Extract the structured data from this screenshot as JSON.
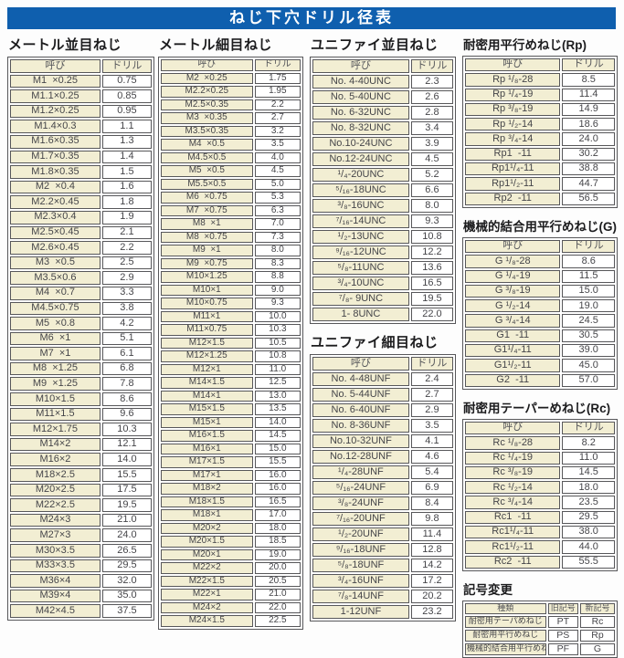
{
  "title": "ねじ下穴ドリル径表",
  "col_headers": {
    "name": "呼び",
    "drill": "ドリル"
  },
  "tables": {
    "metric_coarse": {
      "title": "メートル並目ねじ",
      "rows": [
        [
          "M1  ×0.25",
          "0.75"
        ],
        [
          "M1.1×0.25",
          "0.85"
        ],
        [
          "M1.2×0.25",
          "0.95"
        ],
        [
          "M1.4×0.3",
          "1.1"
        ],
        [
          "M1.6×0.35",
          "1.3"
        ],
        [
          "M1.7×0.35",
          "1.4"
        ],
        [
          "M1.8×0.35",
          "1.5"
        ],
        [
          "M2  ×0.4",
          "1.6"
        ],
        [
          "M2.2×0.45",
          "1.8"
        ],
        [
          "M2.3×0.4",
          "1.9"
        ],
        [
          "M2.5×0.45",
          "2.1"
        ],
        [
          "M2.6×0.45",
          "2.2"
        ],
        [
          "M3  ×0.5",
          "2.5"
        ],
        [
          "M3.5×0.6",
          "2.9"
        ],
        [
          "M4  ×0.7",
          "3.3"
        ],
        [
          "M4.5×0.75",
          "3.8"
        ],
        [
          "M5  ×0.8",
          "4.2"
        ],
        [
          "M6  ×1",
          "5.1"
        ],
        [
          "M7  ×1",
          "6.1"
        ],
        [
          "M8  ×1.25",
          "6.8"
        ],
        [
          "M9  ×1.25",
          "7.8"
        ],
        [
          "M10×1.5",
          "8.6"
        ],
        [
          "M11×1.5",
          "9.6"
        ],
        [
          "M12×1.75",
          "10.3"
        ],
        [
          "M14×2",
          "12.1"
        ],
        [
          "M16×2",
          "14.0"
        ],
        [
          "M18×2.5",
          "15.5"
        ],
        [
          "M20×2.5",
          "17.5"
        ],
        [
          "M22×2.5",
          "19.5"
        ],
        [
          "M24×3",
          "21.0"
        ],
        [
          "M27×3",
          "24.0"
        ],
        [
          "M30×3.5",
          "26.5"
        ],
        [
          "M33×3.5",
          "29.5"
        ],
        [
          "M36×4",
          "32.0"
        ],
        [
          "M39×4",
          "35.0"
        ],
        [
          "M42×4.5",
          "37.5"
        ]
      ]
    },
    "metric_fine": {
      "title": "メートル細目ねじ",
      "rows": [
        [
          "M2  ×0.25",
          "1.75"
        ],
        [
          "M2.2×0.25",
          "1.95"
        ],
        [
          "M2.5×0.35",
          "2.2"
        ],
        [
          "M3  ×0.35",
          "2.7"
        ],
        [
          "M3.5×0.35",
          "3.2"
        ],
        [
          "M4  ×0.5",
          "3.5"
        ],
        [
          "M4.5×0.5",
          "4.0"
        ],
        [
          "M5  ×0.5",
          "4.5"
        ],
        [
          "M5.5×0.5",
          "5.0"
        ],
        [
          "M6  ×0.75",
          "5.3"
        ],
        [
          "M7  ×0.75",
          "6.3"
        ],
        [
          "M8  ×1",
          "7.0"
        ],
        [
          "M8  ×0.75",
          "7.3"
        ],
        [
          "M9  ×1",
          "8.0"
        ],
        [
          "M9  ×0.75",
          "8.3"
        ],
        [
          "M10×1.25",
          "8.8"
        ],
        [
          "M10×1",
          "9.0"
        ],
        [
          "M10×0.75",
          "9.3"
        ],
        [
          "M11×1",
          "10.0"
        ],
        [
          "M11×0.75",
          "10.3"
        ],
        [
          "M12×1.5",
          "10.5"
        ],
        [
          "M12×1.25",
          "10.8"
        ],
        [
          "M12×1",
          "11.0"
        ],
        [
          "M14×1.5",
          "12.5"
        ],
        [
          "M14×1",
          "13.0"
        ],
        [
          "M15×1.5",
          "13.5"
        ],
        [
          "M15×1",
          "14.0"
        ],
        [
          "M16×1.5",
          "14.5"
        ],
        [
          "M16×1",
          "15.0"
        ],
        [
          "M17×1.5",
          "15.5"
        ],
        [
          "M17×1",
          "16.0"
        ],
        [
          "M18×2",
          "16.0"
        ],
        [
          "M18×1.5",
          "16.5"
        ],
        [
          "M18×1",
          "17.0"
        ],
        [
          "M20×2",
          "18.0"
        ],
        [
          "M20×1.5",
          "18.5"
        ],
        [
          "M20×1",
          "19.0"
        ],
        [
          "M22×2",
          "20.0"
        ],
        [
          "M22×1.5",
          "20.5"
        ],
        [
          "M22×1",
          "21.0"
        ],
        [
          "M24×2",
          "22.0"
        ],
        [
          "M24×1.5",
          "22.5"
        ]
      ]
    },
    "unified_coarse": {
      "title": "ユニファイ並目ねじ",
      "rows": [
        [
          "No. 4-40UNC",
          "2.3"
        ],
        [
          "No. 5-40UNC",
          "2.6"
        ],
        [
          "No. 6-32UNC",
          "2.8"
        ],
        [
          "No. 8-32UNC",
          "3.4"
        ],
        [
          "No.10-24UNC",
          "3.9"
        ],
        [
          "No.12-24UNC",
          "4.5"
        ],
        [
          "¹/₄-20UNC",
          "5.2"
        ],
        [
          "⁵/₁₆-18UNC",
          "6.6"
        ],
        [
          "³/₈-16UNC",
          "8.0"
        ],
        [
          "⁷/₁₆-14UNC",
          "9.3"
        ],
        [
          "¹/₂-13UNC",
          "10.8"
        ],
        [
          "⁹/₁₆-12UNC",
          "12.2"
        ],
        [
          "⁵/₈-11UNC",
          "13.6"
        ],
        [
          "³/₄-10UNC",
          "16.5"
        ],
        [
          "⁷/₈- 9UNC",
          "19.5"
        ],
        [
          "1- 8UNC",
          "22.0"
        ]
      ]
    },
    "unified_fine": {
      "title": "ユニファイ細目ねじ",
      "rows": [
        [
          "No. 4-48UNF",
          "2.4"
        ],
        [
          "No. 5-44UNF",
          "2.7"
        ],
        [
          "No. 6-40UNF",
          "2.9"
        ],
        [
          "No. 8-36UNF",
          "3.5"
        ],
        [
          "No.10-32UNF",
          "4.1"
        ],
        [
          "No.12-28UNF",
          "4.6"
        ],
        [
          "¹/₄-28UNF",
          "5.4"
        ],
        [
          "⁵/₁₆-24UNF",
          "6.9"
        ],
        [
          "³/₈-24UNF",
          "8.4"
        ],
        [
          "⁷/₁₆-20UNF",
          "9.8"
        ],
        [
          "¹/₂-20UNF",
          "11.4"
        ],
        [
          "⁹/₁₆-18UNF",
          "12.8"
        ],
        [
          "⁵/₈-18UNF",
          "14.2"
        ],
        [
          "³/₄-16UNF",
          "17.2"
        ],
        [
          "⁷/₈-14UNF",
          "20.2"
        ],
        [
          "1-12UNF",
          "23.2"
        ]
      ]
    },
    "rp": {
      "title": "耐密用平行めねじ(Rp)",
      "rows": [
        [
          "Rp ¹/₈-28",
          "8.5"
        ],
        [
          "Rp ¹/₄-19",
          "11.4"
        ],
        [
          "Rp ³/₈-19",
          "14.9"
        ],
        [
          "Rp ¹/₂-14",
          "18.6"
        ],
        [
          "Rp ³/₄-14",
          "24.0"
        ],
        [
          "Rp1  -11",
          "30.2"
        ],
        [
          "Rp1¹/₄-11",
          "38.8"
        ],
        [
          "Rp1¹/₂-11",
          "44.7"
        ],
        [
          "Rp2  -11",
          "56.5"
        ]
      ]
    },
    "g": {
      "title": "機械的結合用平行めねじ(G)",
      "rows": [
        [
          "G ¹/₈-28",
          "8.6"
        ],
        [
          "G ¹/₄-19",
          "11.5"
        ],
        [
          "G ³/₈-19",
          "15.0"
        ],
        [
          "G ¹/₂-14",
          "19.0"
        ],
        [
          "G ³/₄-14",
          "24.5"
        ],
        [
          "G1  -11",
          "30.5"
        ],
        [
          "G1¹/₄-11",
          "39.0"
        ],
        [
          "G1¹/₂-11",
          "45.0"
        ],
        [
          "G2  -11",
          "57.0"
        ]
      ]
    },
    "rc": {
      "title": "耐密用テーパーめねじ(Rc)",
      "rows": [
        [
          "Rc ¹/₈-28",
          "8.2"
        ],
        [
          "Rc ¹/₄-19",
          "11.0"
        ],
        [
          "Rc ³/₈-19",
          "14.5"
        ],
        [
          "Rc ¹/₂-14",
          "18.0"
        ],
        [
          "Rc ³/₄-14",
          "23.5"
        ],
        [
          "Rc1  -11",
          "29.5"
        ],
        [
          "Rc1¹/₄-11",
          "38.0"
        ],
        [
          "Rc1¹/₂-11",
          "44.0"
        ],
        [
          "Rc2  -11",
          "55.5"
        ]
      ]
    },
    "symbol_change": {
      "title": "記号変更",
      "headers": [
        "種類",
        "旧記号",
        "新記号"
      ],
      "rows": [
        [
          "耐密用テーパめねじ",
          "PT",
          "Rc"
        ],
        [
          "耐密用平行めねじ",
          "PS",
          "Rp"
        ],
        [
          "機械的結合用平行めねじ",
          "PF",
          "G"
        ]
      ]
    }
  },
  "colors": {
    "band_blue": "#0f5fae",
    "cell_cream": "#f2eed3",
    "border_gray": "#57575a",
    "text_gray": "#454549"
  }
}
